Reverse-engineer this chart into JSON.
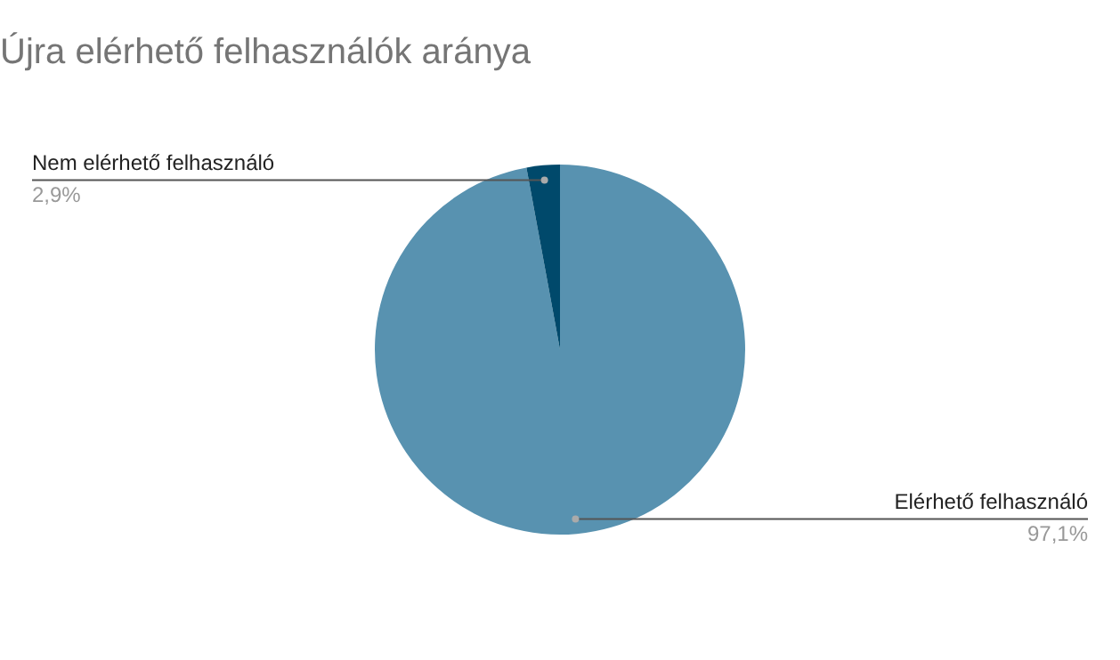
{
  "chart_data": {
    "type": "pie",
    "title": "Újra elérhető felhasználók aránya",
    "categories": [
      "Elérhető felhasználó",
      "Nem elérhető felhasználó"
    ],
    "values": [
      97.1,
      2.9
    ],
    "colors": [
      "#5892b0",
      "#00496b"
    ],
    "value_labels": [
      "97,1%",
      "2,9%"
    ],
    "legend": false
  }
}
